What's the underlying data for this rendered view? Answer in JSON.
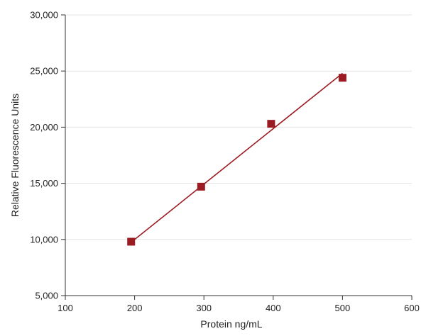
{
  "chart_data": {
    "type": "scatter",
    "title": "",
    "xlabel": "Protein ng/mL",
    "ylabel": "Relative Fluorescence Units",
    "xlim": [
      100,
      600
    ],
    "ylim": [
      5000,
      30000
    ],
    "x_ticks": [
      100,
      200,
      300,
      400,
      500,
      600
    ],
    "y_ticks": [
      5000,
      10000,
      15000,
      20000,
      25000,
      30000
    ],
    "x_tick_labels": [
      "100",
      "200",
      "300",
      "400",
      "500",
      "600"
    ],
    "y_tick_labels": [
      "5,000",
      "10,000",
      "15,000",
      "20,000",
      "25,000",
      "30,000"
    ],
    "grid": "horizontal",
    "legend": "none",
    "series": [
      {
        "x": [
          195,
          296,
          397,
          500
        ],
        "y": [
          9800,
          14700,
          20300,
          24400
        ],
        "marker": "square",
        "color": "#9b1b22"
      }
    ],
    "fit_line": {
      "x": [
        195,
        500
      ],
      "y": [
        9750,
        24800
      ],
      "color": "#9b1b22"
    }
  }
}
